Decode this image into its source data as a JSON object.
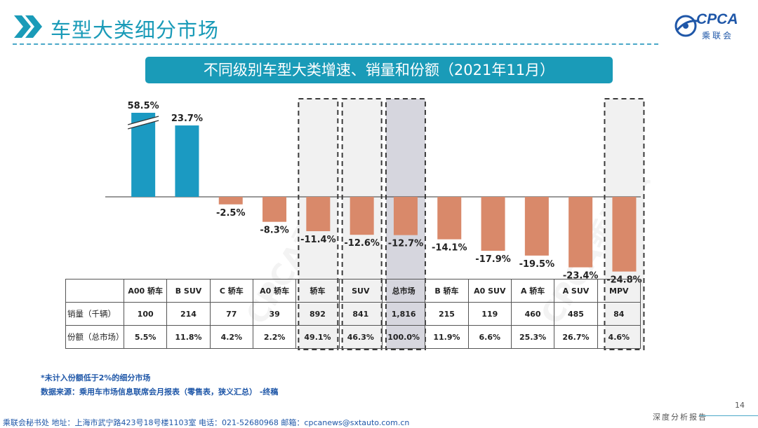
{
  "header": {
    "title": "车型大类细分市场",
    "banner": "不同级别车型大类增速、销量和份额（2021年11月）"
  },
  "logo": {
    "text": "CPCA",
    "sub": "乘联会"
  },
  "watermark": "CPCA乘联会",
  "colors": {
    "accent": "#1a9bb8",
    "positive": "#1b9ac2",
    "negative": "#d9896a",
    "highlight_box": "#f1f1f1",
    "highlight_total": "#d6d6de",
    "text_blue": "#1f57a8"
  },
  "chart_data": {
    "type": "bar",
    "title": "不同级别车型大类增速、销量和份额（2021年11月）",
    "categories": [
      "A00 轿车",
      "B SUV",
      "C 轿车",
      "A0 轿车",
      "轿车",
      "SUV",
      "总市场",
      "B 轿车",
      "A0 SUV",
      "A 轿车",
      "A SUV",
      "MPV"
    ],
    "values": [
      58.5,
      23.7,
      -2.5,
      -8.3,
      -11.4,
      -12.6,
      -12.7,
      -14.1,
      -17.9,
      -19.5,
      -23.4,
      -24.8
    ],
    "value_labels": [
      "58.5%",
      "23.7%",
      "-2.5%",
      "-8.3%",
      "-11.4%",
      "-12.6%",
      "-12.7%",
      "-14.1%",
      "-17.9%",
      "-19.5%",
      "-23.4%",
      "-24.8%"
    ],
    "broken_axis": [
      true,
      false,
      false,
      false,
      false,
      false,
      false,
      false,
      false,
      false,
      false,
      false
    ],
    "highlighted": [
      "轿车",
      "SUV",
      "总市场",
      "MPV"
    ],
    "xlabel": "",
    "ylabel": "",
    "table": {
      "rows": [
        {
          "label": "销量（千辆）",
          "values": [
            "100",
            "214",
            "77",
            "39",
            "892",
            "841",
            "1,816",
            "215",
            "119",
            "460",
            "485",
            "84"
          ]
        },
        {
          "label": "份额（总市场）",
          "values": [
            "5.5%",
            "11.8%",
            "4.2%",
            "2.2%",
            "49.1%",
            "46.3%",
            "100.0%",
            "11.9%",
            "6.6%",
            "25.3%",
            "26.7%",
            "4.6%"
          ]
        }
      ]
    }
  },
  "notes": {
    "note1": "*未计入份额低于2%的细分市场",
    "note2": "数据来源：乘用车市场信息联席会月报表（零售表，狭义汇总） -终稿"
  },
  "footer": {
    "contact": "乘联会秘书处   地址：上海市武宁路423号18号楼1103室  电话：021-52680968   邮箱：cpcanews@sxtauto.com.cn",
    "tagline": "深度分析报告",
    "page": "14"
  }
}
